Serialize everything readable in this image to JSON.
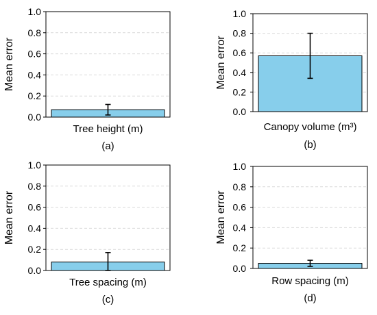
{
  "chart_data": [
    {
      "type": "bar",
      "panel_label": "(a)",
      "categories": [
        "Tree height (m)"
      ],
      "values": [
        0.07
      ],
      "error": [
        0.05
      ],
      "ylabel": "Mean error",
      "xlabel": "",
      "ylim": [
        0,
        1.0
      ],
      "yticks": [
        "0.0",
        "0.2",
        "0.4",
        "0.6",
        "0.8",
        "1.0"
      ],
      "grid": "horizontal dashed",
      "bar_color": "#87CEEB"
    },
    {
      "type": "bar",
      "panel_label": "(b)",
      "categories": [
        "Canopy volume (m³)"
      ],
      "values": [
        0.57
      ],
      "error": [
        0.23
      ],
      "ylabel": "Mean error",
      "xlabel": "",
      "ylim": [
        0,
        1.0
      ],
      "yticks": [
        "0.0",
        "0.2",
        "0.4",
        "0.6",
        "0.8",
        "1.0"
      ],
      "grid": "horizontal dashed",
      "bar_color": "#87CEEB"
    },
    {
      "type": "bar",
      "panel_label": "(c)",
      "categories": [
        "Tree spacing (m)"
      ],
      "values": [
        0.08
      ],
      "error": [
        0.09
      ],
      "ylabel": "Mean error",
      "xlabel": "",
      "ylim": [
        0,
        1.0
      ],
      "yticks": [
        "0.0",
        "0.2",
        "0.4",
        "0.6",
        "0.8",
        "1.0"
      ],
      "grid": "horizontal dashed",
      "bar_color": "#87CEEB"
    },
    {
      "type": "bar",
      "panel_label": "(d)",
      "categories": [
        "Row spacing (m)"
      ],
      "values": [
        0.05
      ],
      "error": [
        0.03
      ],
      "ylabel": "Mean error",
      "xlabel": "",
      "ylim": [
        0,
        1.0
      ],
      "yticks": [
        "0.0",
        "0.2",
        "0.4",
        "0.6",
        "0.8",
        "1.0"
      ],
      "grid": "horizontal dashed",
      "bar_color": "#87CEEB"
    }
  ]
}
